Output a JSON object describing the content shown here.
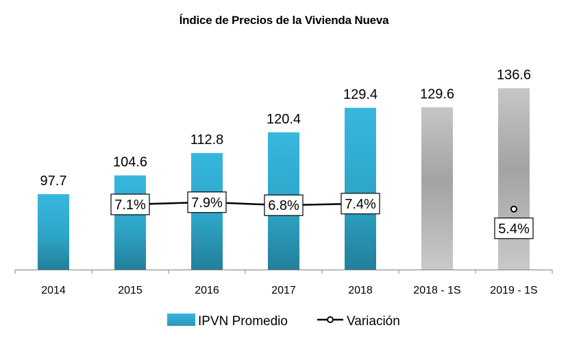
{
  "chart_data": {
    "type": "bar",
    "title": "Índice de Precios de la Vivienda Nueva",
    "categories": [
      "2014",
      "2015",
      "2016",
      "2017",
      "2018",
      "2018 - 1S",
      "2019 - 1S"
    ],
    "series": [
      {
        "name": "IPVN Promedio",
        "type": "bar",
        "values": [
          97.7,
          104.6,
          112.8,
          120.4,
          129.4,
          129.6,
          136.6
        ],
        "value_labels": [
          "97.7",
          "104.6",
          "112.8",
          "120.4",
          "129.4",
          "129.6",
          "136.6"
        ],
        "colors": [
          "#33b3d8",
          "#33b3d8",
          "#33b3d8",
          "#33b3d8",
          "#33b3d8",
          "#bdbdbd",
          "#bdbdbd"
        ]
      },
      {
        "name": "Variación",
        "type": "line",
        "values": [
          null,
          7.1,
          7.9,
          6.8,
          7.4,
          null,
          5.4
        ],
        "value_labels": [
          null,
          "7.1%",
          "7.9%",
          "6.8%",
          "7.4%",
          null,
          "5.4%"
        ],
        "color": "#000000"
      }
    ],
    "xlabel": "",
    "ylabel": "",
    "grid": false,
    "legend_position": "bottom"
  }
}
